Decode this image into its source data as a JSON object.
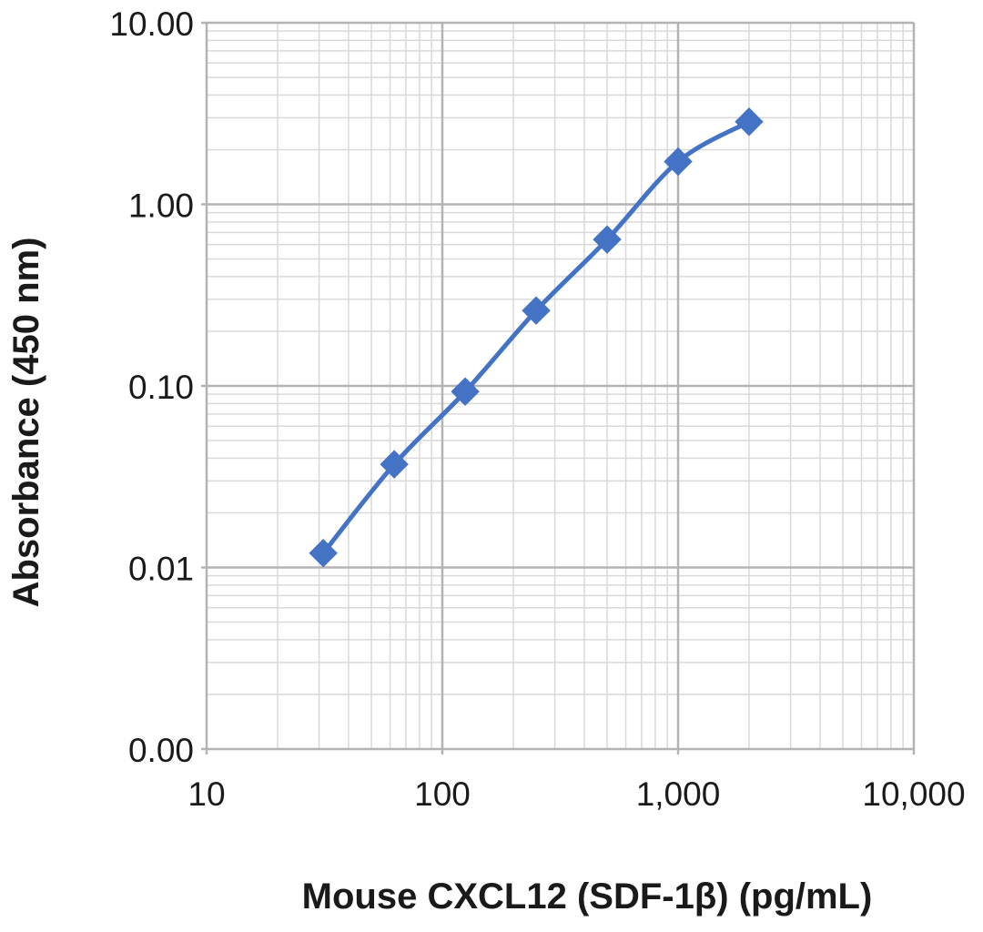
{
  "chart_data": {
    "type": "line",
    "title": "",
    "xlabel": "Mouse CXCL12 (SDF-1β) (pg/mL)",
    "ylabel": "Absorbance  (450 nm)",
    "x_scale": "log",
    "y_scale": "log",
    "xlim": [
      10,
      10000
    ],
    "ylim": [
      0.001,
      10
    ],
    "x_ticks": [
      10,
      100,
      1000,
      10000
    ],
    "x_tick_labels": [
      "10",
      "100",
      "1,000",
      "10,000"
    ],
    "y_ticks": [
      10,
      1,
      0.1,
      0.01,
      0.001
    ],
    "y_tick_labels": [
      "10.00",
      "1.00",
      "0.10",
      "0.01",
      "0.00"
    ],
    "grid": true,
    "series_color": "#4472C4",
    "grid_major_color": "#b3b3b3",
    "grid_minor_color": "#d9d9d9",
    "marker": "diamond",
    "series": [
      {
        "x": [
          31.25,
          62.5,
          125,
          250,
          500,
          1000,
          2000
        ],
        "y": [
          0.012,
          0.037,
          0.093,
          0.26,
          0.64,
          1.72,
          2.85
        ]
      }
    ]
  }
}
